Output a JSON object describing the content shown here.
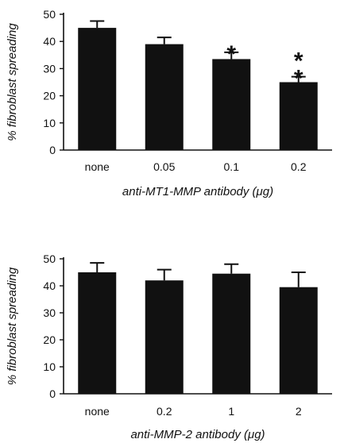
{
  "colors": {
    "bar": "#111111",
    "axis": "#111111",
    "background": "#ffffff"
  },
  "chart_data": [
    {
      "type": "bar",
      "categories": [
        "none",
        "0.05",
        "0.1",
        "0.2"
      ],
      "values": [
        45,
        39,
        33.5,
        25
      ],
      "error": [
        2.5,
        2.5,
        2.5,
        2
      ],
      "significance": [
        "",
        "",
        "*",
        "**"
      ],
      "xlabel": "anti-MT1-MMP antibody (μg)",
      "ylabel": "% fibroblast spreading",
      "ylim": [
        0,
        50
      ],
      "yticks": [
        0,
        10,
        20,
        30,
        40,
        50
      ],
      "grid": false
    },
    {
      "type": "bar",
      "categories": [
        "none",
        "0.2",
        "1",
        "2"
      ],
      "values": [
        45,
        42,
        44.5,
        39.5
      ],
      "error": [
        3.5,
        4,
        3.5,
        5.5
      ],
      "significance": [
        "",
        "",
        "",
        ""
      ],
      "xlabel": "anti-MMP-2 antibody (μg)",
      "ylabel": "% fibroblast spreading",
      "ylim": [
        0,
        50
      ],
      "yticks": [
        0,
        10,
        20,
        30,
        40,
        50
      ],
      "grid": false
    }
  ]
}
